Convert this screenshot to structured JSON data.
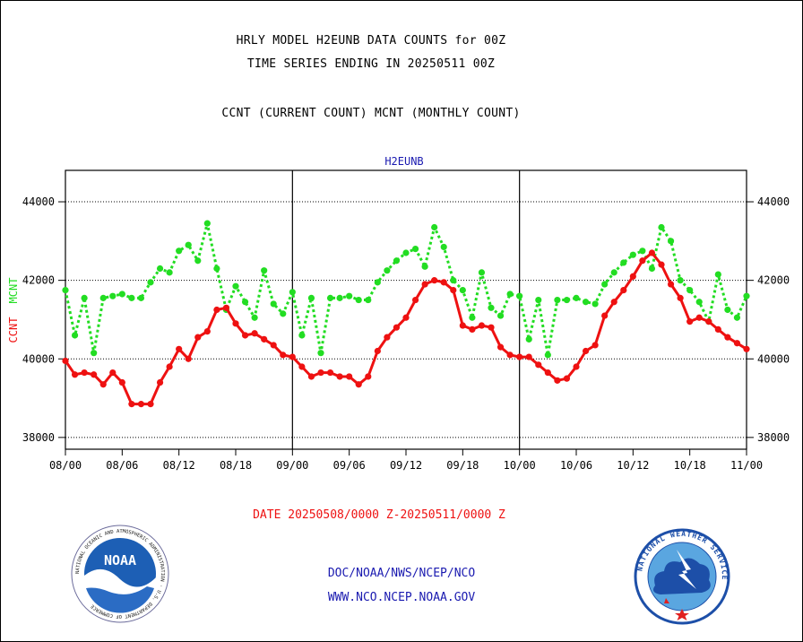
{
  "header": {
    "line1": "HRLY MODEL H2EUNB DATA COUNTS for 00Z",
    "line2": "TIME SERIES ENDING IN 20250511 00Z",
    "line3": "CCNT (CURRENT COUNT) MCNT (MONTHLY COUNT)"
  },
  "footer": {
    "date_range": "DATE 20250508/0000 Z-20250511/0000 Z",
    "org_path": "DOC/NOAA/NWS/NCEP/NCO",
    "website": "WWW.NCO.NCEP.NOAA.GOV"
  },
  "logos": {
    "noaa_wordmark": "NOAA",
    "noaa_ring": "NATIONAL OCEANIC AND ATMOSPHERIC ADMINISTRATION · U.S. DEPARTMENT OF COMMERCE",
    "nws_ring": "NATIONAL WEATHER SERVICE"
  },
  "colors": {
    "ccnt": "#ee1111",
    "mcnt": "#22dd22",
    "title": "#1a1ab0",
    "date_range": "#ee1111"
  },
  "chart_data": {
    "type": "line",
    "title": "H2EUNB",
    "ylabel_ccnt": "CCNT",
    "ylabel_mcnt": "MCNT",
    "ylim": [
      37700,
      44800
    ],
    "yticks": [
      38000,
      40000,
      42000,
      44000
    ],
    "ytick_labels": [
      "38000",
      "40000",
      "42000",
      "44000"
    ],
    "xtick_labels": [
      "08/00",
      "08/06",
      "08/12",
      "08/18",
      "09/00",
      "09/06",
      "09/12",
      "09/18",
      "10/00",
      "10/06",
      "10/12",
      "10/18",
      "11/00"
    ],
    "xlim": [
      0,
      72
    ],
    "grid": "horizontal dotted at y ticks; vertical day separators",
    "day_separators": [
      24,
      48
    ],
    "series": [
      {
        "name": "CCNT",
        "x": [
          0,
          1,
          2,
          3,
          4,
          5,
          6,
          7,
          8,
          9,
          10,
          11,
          12,
          13,
          14,
          15,
          16,
          17,
          18,
          19,
          20,
          21,
          22,
          23,
          24,
          25,
          26,
          27,
          28,
          29,
          30,
          31,
          32,
          33,
          34,
          35,
          36,
          37,
          38,
          39,
          40,
          41,
          42,
          43,
          44,
          45,
          46,
          47,
          48,
          49,
          50,
          51,
          52,
          53,
          54,
          55,
          56,
          57,
          58,
          59,
          60,
          61,
          62,
          63,
          64,
          65,
          66,
          67,
          68,
          69,
          70,
          71,
          72
        ],
        "values": [
          39950,
          39600,
          39650,
          39600,
          39350,
          39650,
          39400,
          38850,
          38850,
          38850,
          39400,
          39800,
          40250,
          40000,
          40550,
          40700,
          41250,
          41300,
          40900,
          40600,
          40650,
          40500,
          40350,
          40100,
          40050,
          39800,
          39550,
          39650,
          39650,
          39550,
          39550,
          39350,
          39550,
          40200,
          40550,
          40800,
          41050,
          41500,
          41900,
          42000,
          41950,
          41750,
          40850,
          40750,
          40850,
          40800,
          40300,
          40100,
          40050,
          40050,
          39850,
          39650,
          39450,
          39500,
          39800,
          40200,
          40350,
          41100,
          41450,
          41750,
          42100,
          42500,
          42700,
          42400,
          41900,
          41550,
          40950,
          41050,
          40950,
          40750,
          40550,
          40400,
          40250
        ]
      },
      {
        "name": "MCNT",
        "x": [
          0,
          1,
          2,
          3,
          4,
          5,
          6,
          7,
          8,
          9,
          10,
          11,
          12,
          13,
          14,
          15,
          16,
          17,
          18,
          19,
          20,
          21,
          22,
          23,
          24,
          25,
          26,
          27,
          28,
          29,
          30,
          31,
          32,
          33,
          34,
          35,
          36,
          37,
          38,
          39,
          40,
          41,
          42,
          43,
          44,
          45,
          46,
          47,
          48,
          49,
          50,
          51,
          52,
          53,
          54,
          55,
          56,
          57,
          58,
          59,
          60,
          61,
          62,
          63,
          64,
          65,
          66,
          67,
          68,
          69,
          70,
          71,
          72
        ],
        "values": [
          41750,
          40600,
          41550,
          40150,
          41550,
          41600,
          41650,
          41550,
          41550,
          41950,
          42300,
          42200,
          42750,
          42900,
          42500,
          43450,
          42300,
          41250,
          41850,
          41450,
          41050,
          42250,
          41400,
          41150,
          41700,
          40600,
          41550,
          40150,
          41550,
          41550,
          41600,
          41500,
          41500,
          41950,
          42250,
          42500,
          42700,
          42800,
          42350,
          43350,
          42850,
          42000,
          41750,
          41050,
          42200,
          41300,
          41100,
          41650,
          41600,
          40500,
          41500,
          40100,
          41500,
          41500,
          41550,
          41450,
          41400,
          41900,
          42200,
          42450,
          42650,
          42750,
          42300,
          43350,
          43000,
          42000,
          41750,
          41450,
          40950,
          42150,
          41250,
          41050,
          41600
        ]
      }
    ]
  }
}
